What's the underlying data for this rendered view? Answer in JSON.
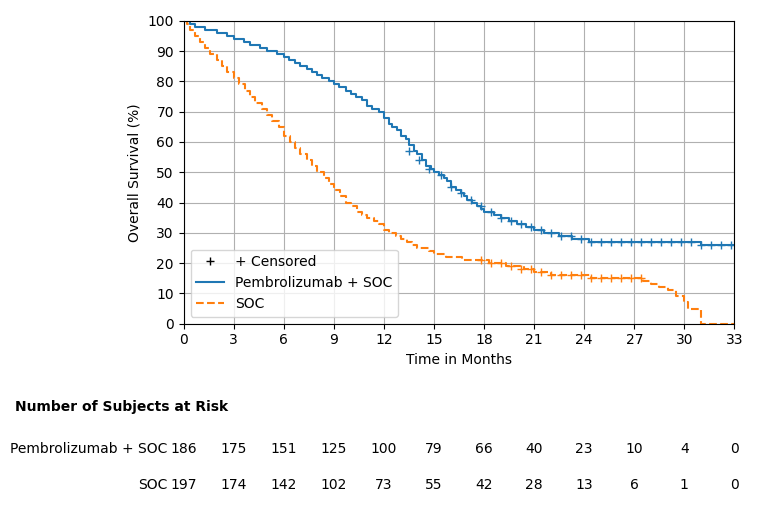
{
  "chart_data": {
    "type": "step",
    "xlabel": "Time in Months",
    "ylabel": "Overall Survival (%)",
    "xlim": [
      0,
      33
    ],
    "ylim": [
      0,
      100
    ],
    "xticks": [
      0,
      3,
      6,
      9,
      12,
      15,
      18,
      21,
      24,
      27,
      30,
      33
    ],
    "yticks": [
      0,
      10,
      20,
      30,
      40,
      50,
      60,
      70,
      80,
      90,
      100
    ],
    "grid": true,
    "legend": "lower left",
    "censor_label": "+ Censored",
    "censor_marker": "+",
    "at_risk_title": "Number of Subjects at Risk",
    "at_risk_times": [
      0,
      3,
      6,
      9,
      12,
      15,
      18,
      21,
      24,
      27,
      30,
      33
    ],
    "series": [
      {
        "name": "Pembrolizumab + SOC",
        "line_style": "solid",
        "x": [
          0,
          0.2,
          0.4,
          0.7,
          1.0,
          1.3,
          1.6,
          2.0,
          2.3,
          2.6,
          3.0,
          3.3,
          3.6,
          4.0,
          4.3,
          4.6,
          5.0,
          5.3,
          5.6,
          6.0,
          6.3,
          6.7,
          7.0,
          7.4,
          7.7,
          8.0,
          8.3,
          8.7,
          9.0,
          9.3,
          9.7,
          10.0,
          10.3,
          10.7,
          11.0,
          11.3,
          11.7,
          12.0,
          12.3,
          12.5,
          12.8,
          13.0,
          13.3,
          13.5,
          13.8,
          14.0,
          14.3,
          14.5,
          14.8,
          15.0,
          15.3,
          15.6,
          15.8,
          16.0,
          16.3,
          16.6,
          16.8,
          17.0,
          17.3,
          17.6,
          17.8,
          18.0,
          18.3,
          18.6,
          18.8,
          19.0,
          19.3,
          19.5,
          19.8,
          20.0,
          20.3,
          20.5,
          20.8,
          21.0,
          21.3,
          21.6,
          21.8,
          22.0,
          22.3,
          22.5,
          22.8,
          23.0,
          23.3,
          23.5,
          23.8,
          24.0,
          24.3,
          24.5,
          24.8,
          25.0,
          25.3,
          25.5,
          25.8,
          26.0,
          26.3,
          26.6,
          26.8,
          27.0,
          27.5,
          28.0,
          28.5,
          29.0,
          29.5,
          30.0,
          30.5,
          31.0,
          33.0
        ],
        "values": [
          100,
          100,
          99,
          98,
          98,
          97,
          97,
          96,
          96,
          95,
          94,
          94,
          93,
          92,
          92,
          91,
          90,
          90,
          89,
          88,
          87,
          86,
          85,
          84,
          83,
          82,
          81,
          80,
          79,
          78,
          77,
          76,
          75,
          74,
          72,
          71,
          70,
          68,
          66,
          65,
          64,
          62,
          61,
          59,
          57,
          56,
          54,
          52,
          51,
          50,
          49,
          48,
          47,
          45,
          44,
          43,
          42,
          41,
          40,
          39,
          38,
          37,
          37,
          36,
          36,
          35,
          35,
          34,
          34,
          33,
          33,
          32,
          32,
          31,
          31,
          30,
          30,
          30,
          30,
          29,
          29,
          29,
          28,
          28,
          28,
          28,
          27,
          27,
          27,
          27,
          27,
          27,
          27,
          27,
          27,
          27,
          27,
          27,
          27,
          27,
          27,
          27,
          27,
          27,
          27,
          26,
          26
        ],
        "censor_x": [
          13.5,
          14.1,
          14.7,
          15.4,
          16.0,
          16.6,
          17.2,
          17.8,
          18.4,
          19.0,
          19.6,
          20.2,
          20.8,
          21.4,
          22.0,
          22.6,
          23.2,
          23.8,
          24.4,
          25.0,
          25.6,
          26.2,
          26.8,
          27.4,
          28.0,
          28.6,
          29.2,
          29.8,
          30.4,
          31.0,
          31.6,
          32.2,
          32.8
        ],
        "censor_values": [
          57,
          54,
          51,
          49,
          45,
          43,
          41,
          39,
          37,
          35,
          34,
          33,
          32,
          31,
          30,
          29,
          29,
          28,
          27,
          27,
          27,
          27,
          27,
          27,
          27,
          27,
          27,
          27,
          27,
          26,
          26,
          26,
          26
        ],
        "at_risk": [
          186,
          175,
          151,
          125,
          100,
          79,
          66,
          40,
          23,
          10,
          4,
          0
        ]
      },
      {
        "name": "SOC",
        "line_style": "dashed",
        "x": [
          0,
          0.2,
          0.4,
          0.7,
          1.0,
          1.3,
          1.6,
          2.0,
          2.3,
          2.6,
          3.0,
          3.3,
          3.7,
          4.0,
          4.3,
          4.7,
          5.0,
          5.3,
          5.7,
          6.0,
          6.4,
          6.7,
          7.0,
          7.4,
          7.7,
          8.0,
          8.4,
          8.7,
          9.0,
          9.4,
          9.7,
          10.0,
          10.4,
          10.7,
          11.0,
          11.4,
          11.7,
          12.0,
          12.3,
          12.7,
          13.0,
          13.4,
          13.7,
          14.0,
          14.4,
          14.7,
          15.0,
          15.3,
          15.7,
          16.0,
          16.3,
          16.7,
          17.0,
          17.3,
          17.7,
          18.0,
          18.3,
          18.7,
          19.0,
          19.3,
          19.7,
          20.0,
          20.4,
          20.7,
          21.0,
          21.4,
          21.7,
          22.0,
          22.4,
          22.7,
          23.0,
          23.4,
          23.7,
          24.0,
          24.4,
          24.7,
          25.0,
          25.3,
          25.7,
          26.0,
          26.3,
          26.7,
          27.0,
          27.5,
          28.0,
          28.5,
          29.0,
          29.5,
          30.0,
          30.2,
          30.5,
          31.0,
          33.0
        ],
        "values": [
          100,
          99,
          97,
          95,
          93,
          91,
          89,
          87,
          85,
          83,
          81,
          79,
          77,
          75,
          73,
          71,
          69,
          67,
          65,
          62,
          60,
          58,
          56,
          54,
          52,
          50,
          48,
          46,
          44,
          42,
          40,
          39,
          37,
          36,
          35,
          34,
          33,
          31,
          30,
          29,
          28,
          27,
          26,
          25,
          25,
          24,
          23,
          23,
          22,
          22,
          22,
          21,
          21,
          21,
          21,
          21,
          20,
          20,
          20,
          19,
          19,
          19,
          18,
          18,
          17,
          17,
          17,
          16,
          16,
          16,
          16,
          16,
          16,
          16,
          15,
          15,
          15,
          15,
          15,
          15,
          15,
          15,
          15,
          14,
          13,
          12,
          11,
          9,
          7,
          5,
          5,
          0,
          0
        ],
        "censor_x": [
          17.8,
          18.4,
          19.0,
          19.6,
          20.2,
          20.8,
          21.4,
          22.0,
          22.6,
          23.2,
          23.8,
          24.4,
          25.0,
          25.6,
          26.2,
          26.8,
          27.4
        ],
        "censor_values": [
          21,
          20,
          20,
          19,
          18,
          18,
          17,
          16,
          16,
          16,
          16,
          15,
          15,
          15,
          15,
          15,
          15
        ],
        "at_risk": [
          197,
          174,
          142,
          102,
          73,
          55,
          42,
          28,
          13,
          6,
          1,
          0
        ]
      }
    ]
  }
}
